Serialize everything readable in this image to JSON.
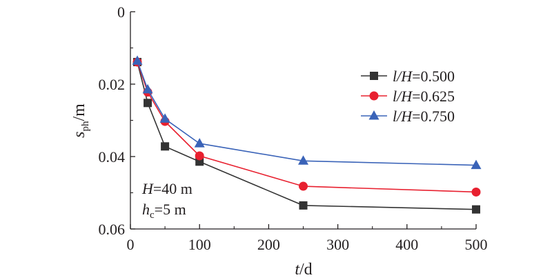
{
  "chart_data": {
    "type": "line",
    "xlabel": {
      "italic": "t",
      "rest": "/d"
    },
    "ylabel": {
      "italic": "s",
      "sub": "ph",
      "rest": "/m"
    },
    "xlim": [
      0,
      500
    ],
    "ylim": [
      0,
      0.06
    ],
    "y_inverted": true,
    "xticks": [
      0,
      100,
      200,
      300,
      400,
      500
    ],
    "xtick_labels": [
      "0",
      "100",
      "200",
      "300",
      "400",
      "500"
    ],
    "yticks": [
      0,
      0.02,
      0.04,
      0.06
    ],
    "ytick_labels": [
      "0",
      "0.02",
      "0.04",
      "0.06"
    ],
    "grid": false,
    "legend_position": "top-right",
    "x": [
      10,
      25,
      50,
      100,
      250,
      500
    ],
    "series": [
      {
        "name": "l/H=0.500",
        "label_italic": "l/H",
        "label_rest": "=0.500",
        "color": "#333333",
        "marker": "square",
        "values": [
          0.0139,
          0.0252,
          0.0372,
          0.0414,
          0.0535,
          0.0546
        ]
      },
      {
        "name": "l/H=0.625",
        "label_italic": "l/H",
        "label_rest": "=0.625",
        "color": "#e8202f",
        "marker": "circle",
        "values": [
          0.0139,
          0.0222,
          0.0303,
          0.0398,
          0.0482,
          0.0498
        ]
      },
      {
        "name": "l/H=0.750",
        "label_italic": "l/H",
        "label_rest": "=0.750",
        "color": "#3a63b8",
        "marker": "triangle",
        "values": [
          0.0136,
          0.0215,
          0.0296,
          0.0364,
          0.0412,
          0.0424
        ]
      }
    ],
    "annotations": [
      {
        "italic": "H",
        "sub": "",
        "rest": "=40 m"
      },
      {
        "italic": "h",
        "sub": "c",
        "rest": "=5 m"
      }
    ]
  }
}
